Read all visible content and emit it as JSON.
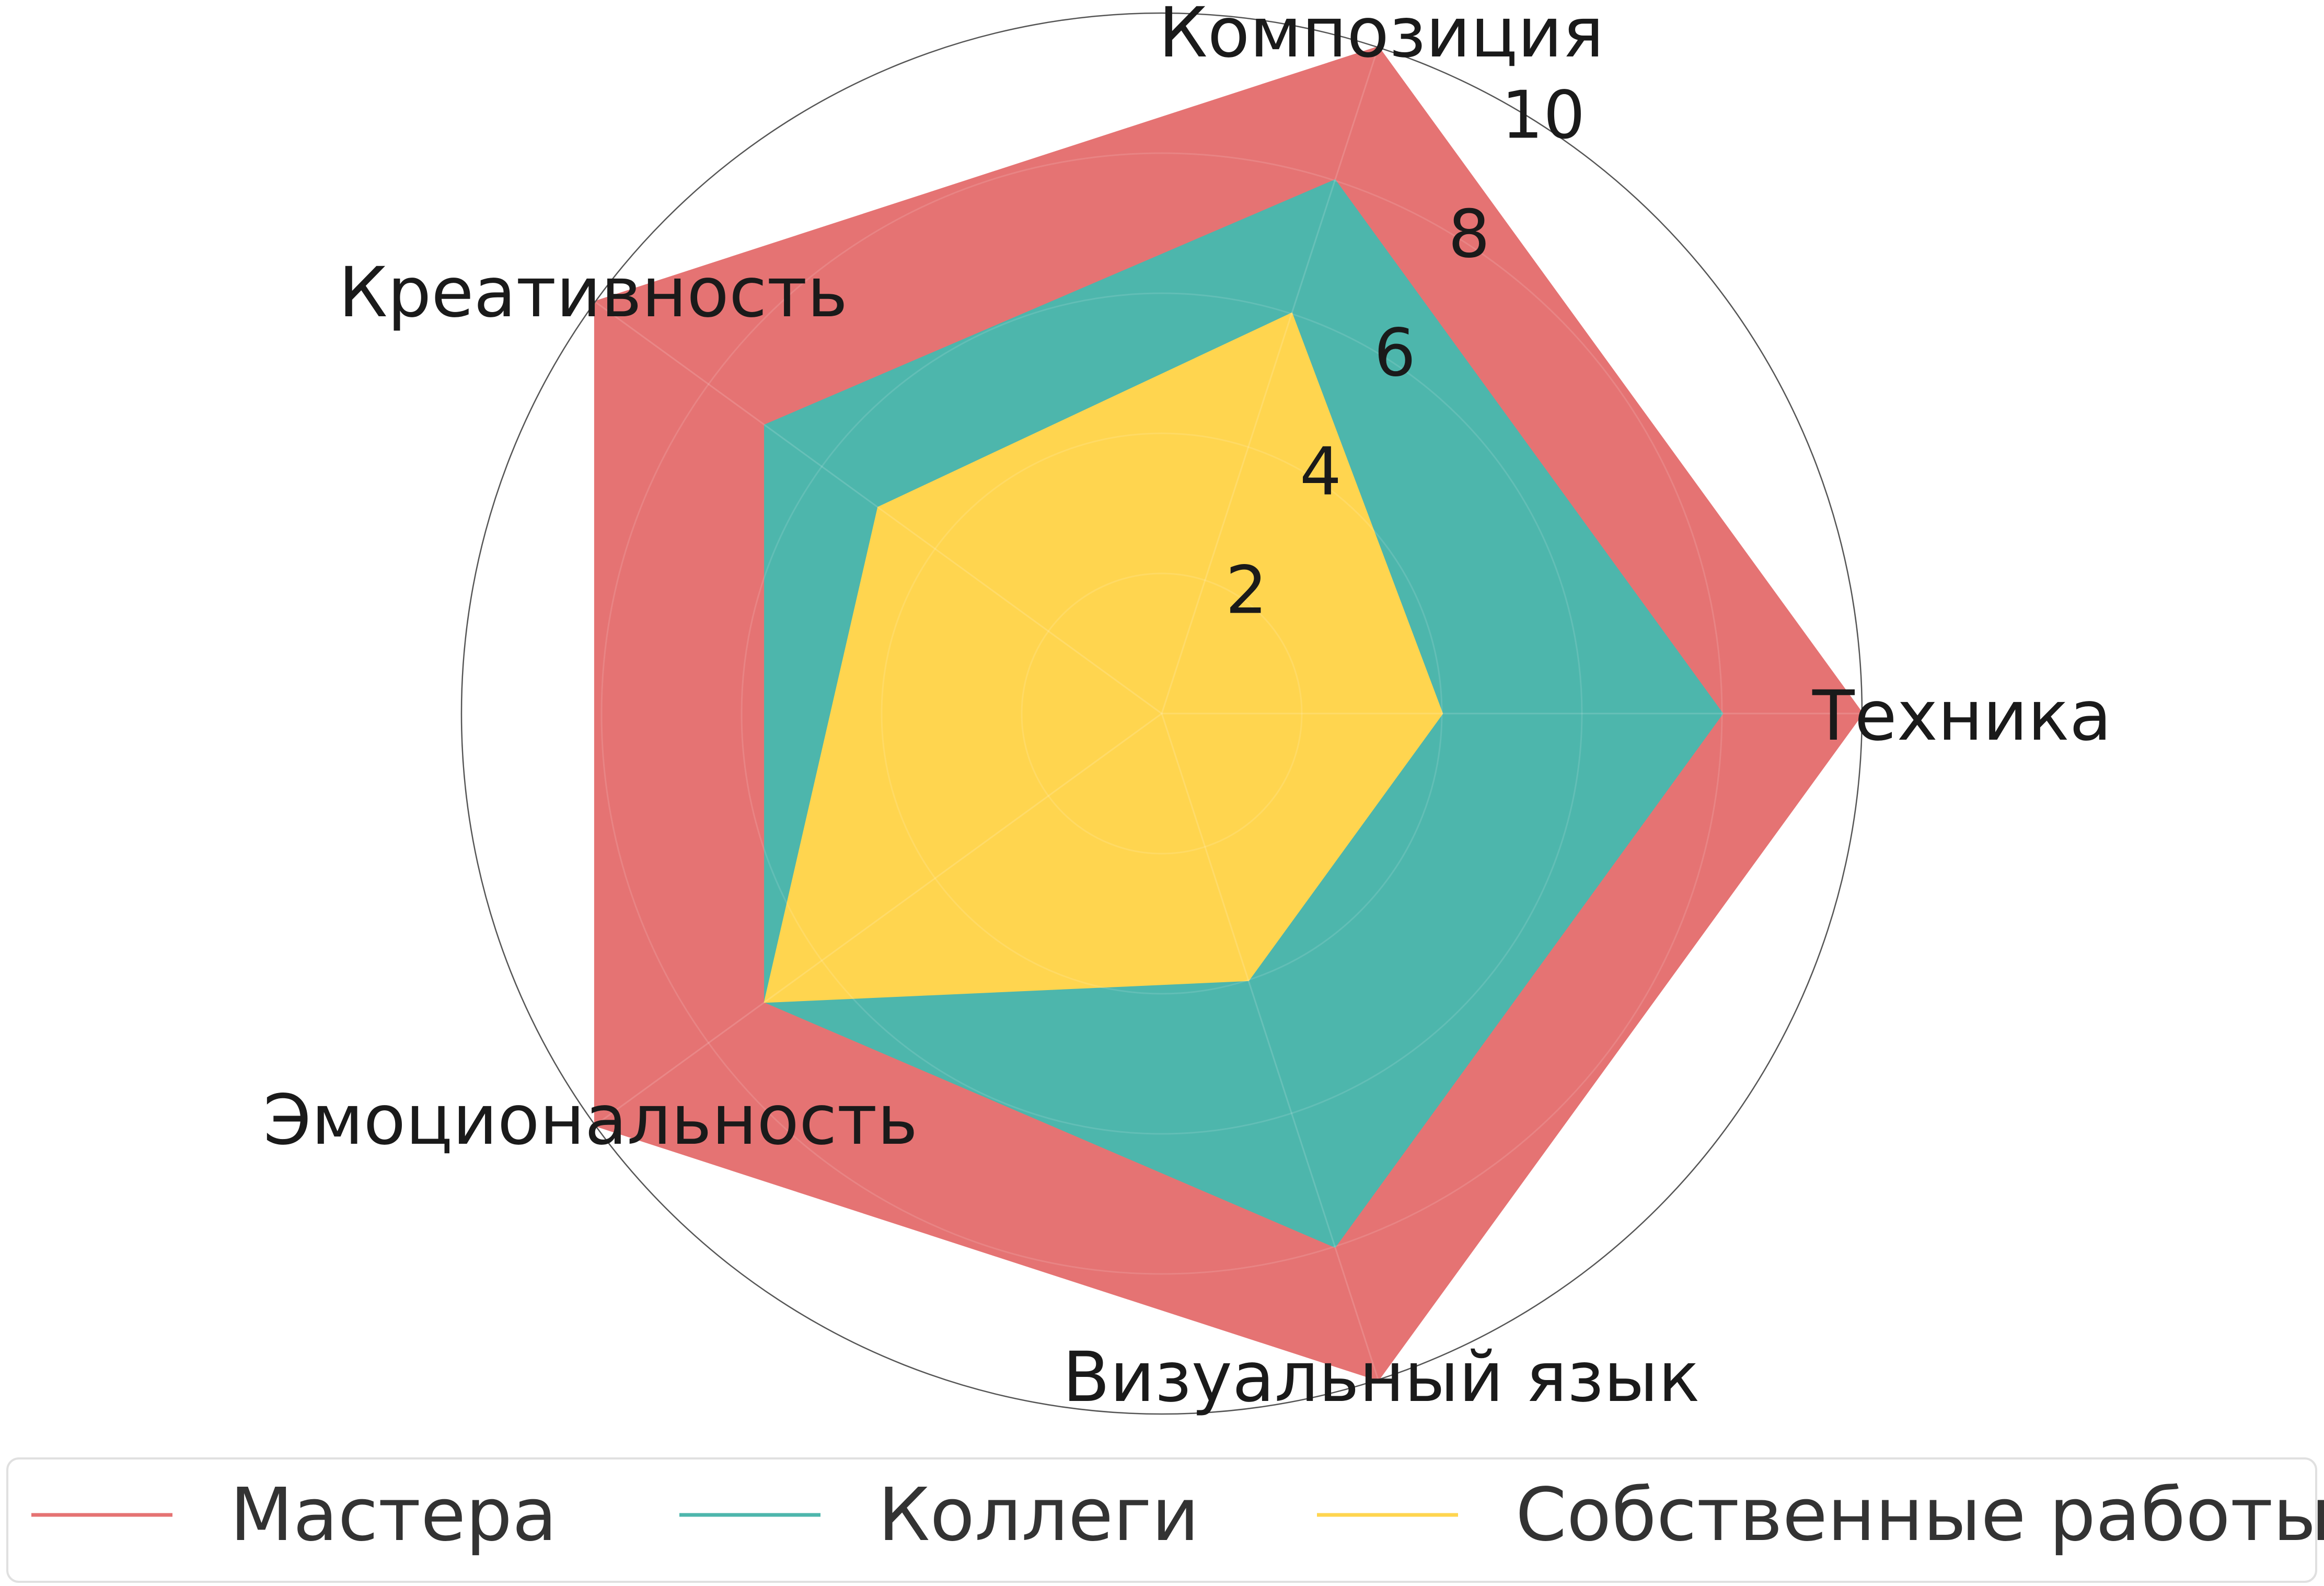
{
  "chart_data": {
    "type": "radar",
    "title": "",
    "categories": [
      "Техника",
      "Композиция",
      "Креативность",
      "Эмоциональность",
      "Визуальный язык"
    ],
    "rlim": [
      0,
      10
    ],
    "rticks": [
      2,
      4,
      6,
      8,
      10
    ],
    "rtick_labels": [
      "2",
      "4",
      "6",
      "8",
      "10"
    ],
    "grid": true,
    "legend_position": "bottom",
    "series": [
      {
        "name": "Мастера",
        "values": [
          10,
          10,
          10,
          10,
          10
        ],
        "color": "#e57373"
      },
      {
        "name": "Коллеги",
        "values": [
          8,
          8,
          7,
          7,
          8
        ],
        "color": "#4db6ac"
      },
      {
        "name": "Собственные работы",
        "values": [
          4,
          6,
          5,
          7,
          4
        ],
        "color": "#ffd54f"
      }
    ]
  }
}
